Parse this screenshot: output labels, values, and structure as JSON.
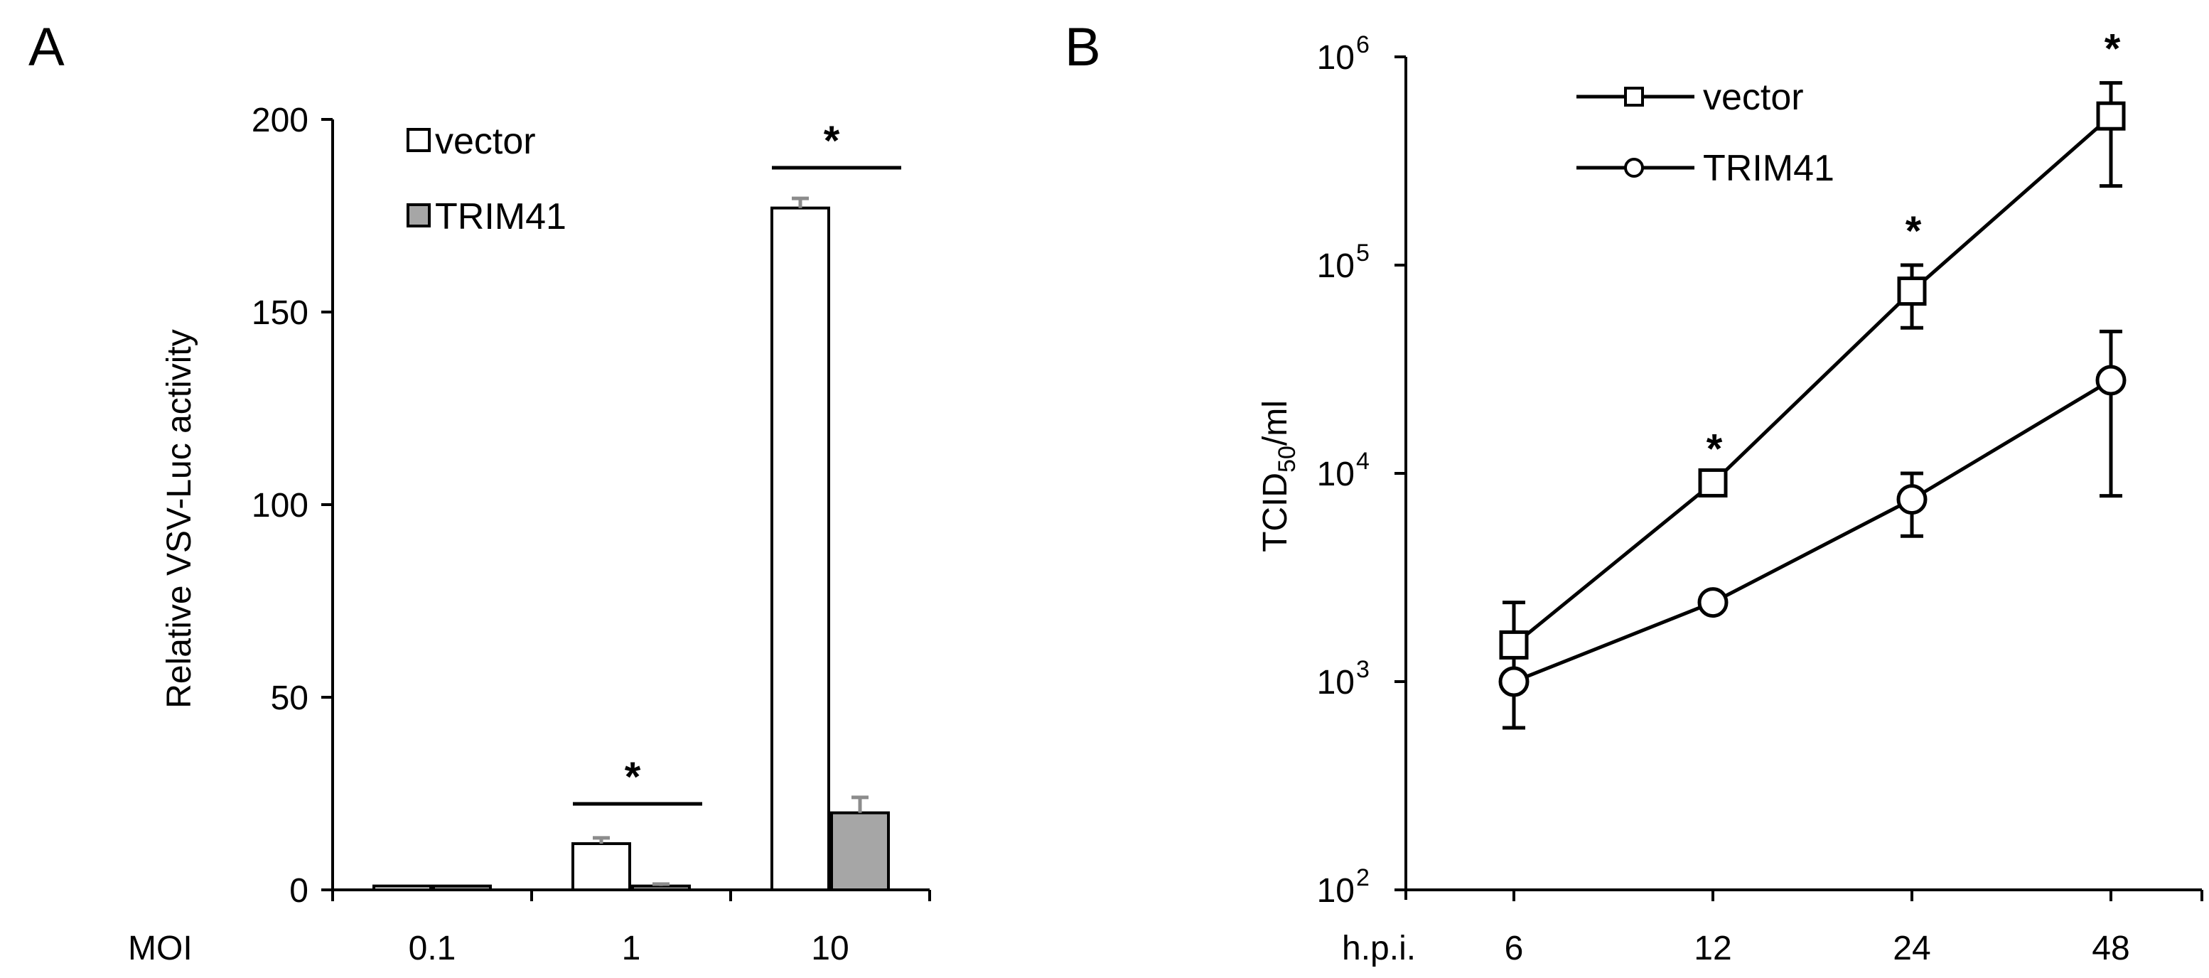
{
  "chart_data": [
    {
      "panel": "A",
      "type": "bar",
      "ylabel": "Relative VSV-Luc activity",
      "xlabel_prefix": "MOI",
      "categories": [
        "0.1",
        "1",
        "10"
      ],
      "ylim": [
        0,
        200
      ],
      "yticks": [
        0,
        50,
        100,
        150,
        200
      ],
      "series": [
        {
          "name": "vector",
          "color": "#ffffff",
          "values": [
            1,
            12,
            177
          ],
          "errors": [
            0,
            1.5,
            2.5
          ]
        },
        {
          "name": "TRIM41",
          "color": "#a6a6a6",
          "values": [
            1,
            1,
            20
          ],
          "errors": [
            0,
            0.5,
            4
          ]
        }
      ],
      "significance": [
        {
          "category": "1",
          "label": "*"
        },
        {
          "category": "10",
          "label": "*"
        }
      ],
      "legend_position": "top-left"
    },
    {
      "panel": "B",
      "type": "line",
      "yscale": "log",
      "ylabel_base": "TCID",
      "ylabel_sub": "50",
      "ylabel_suffix": "/ml",
      "xlabel_prefix": "h.p.i.",
      "categories": [
        "6",
        "12",
        "24",
        "48"
      ],
      "ylim": [
        100,
        1000000
      ],
      "ytick_base": "10",
      "ytick_exponents": [
        "2",
        "3",
        "4",
        "5",
        "6"
      ],
      "series": [
        {
          "name": "vector",
          "marker": "square",
          "values": [
            1500,
            9000,
            75000,
            520000
          ],
          "err_low": [
            600,
            9000,
            50000,
            240000
          ],
          "err_high": [
            2400,
            9000,
            100000,
            750000
          ]
        },
        {
          "name": "TRIM41",
          "marker": "circle",
          "values": [
            1000,
            2400,
            7500,
            28000
          ],
          "err_low": [
            600,
            2400,
            5000,
            7800
          ],
          "err_high": [
            1000,
            2400,
            10000,
            48000
          ]
        }
      ],
      "significance": [
        {
          "category": "12",
          "label": "*"
        },
        {
          "category": "24",
          "label": "*"
        },
        {
          "category": "48",
          "label": "*"
        }
      ],
      "legend_position": "top-left"
    }
  ]
}
